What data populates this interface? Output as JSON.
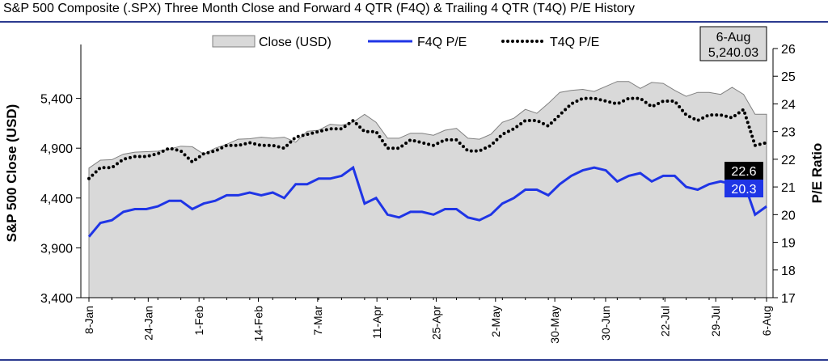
{
  "title": "S&P 500 Composite (.SPX) Three Month Close and Forward 4 QTR (F4Q) & Trailing 4 QTR (T4Q) P/E History",
  "colors": {
    "close_fill": "#d9d9d9",
    "close_stroke": "#808080",
    "f4q": "#1f35e6",
    "t4q": "#000000",
    "rule": "#2b3a8f"
  },
  "callout": {
    "date": "6-Aug",
    "value": "5,240.03"
  },
  "last_labels": {
    "t4q": "22.6",
    "f4q": "20.3"
  },
  "chart_data": {
    "type": "area",
    "xlabel": "",
    "ylabel": "S&P 500 Close (USD)",
    "y2label": "P/E Ratio",
    "ylim": [
      3400,
      5900
    ],
    "y2lim": [
      17,
      26
    ],
    "yticks": [
      "3,400",
      "3,900",
      "4,400",
      "4,900",
      "5,400"
    ],
    "yticks_values": [
      3400,
      3900,
      4400,
      4900,
      5400
    ],
    "y2ticks": [
      17,
      18,
      19,
      20,
      21,
      22,
      23,
      24,
      25,
      26
    ],
    "xticks": [
      "8-Jan",
      "24-Jan",
      "1-Feb",
      "14-Feb",
      "7-Mar",
      "11-Apr",
      "25-Apr",
      "2-May",
      "30-May",
      "30-Jun",
      "22-Jul",
      "29-Jul",
      "6-Aug"
    ],
    "xticks_index": [
      0,
      7,
      13,
      20,
      27,
      34,
      41,
      48,
      55,
      61,
      68,
      74,
      80
    ],
    "legend": [
      "Close (USD)",
      "F4Q P/E",
      "T4Q P/E"
    ],
    "legend_position": "top",
    "series": [
      {
        "name": "Close (USD)",
        "axis": "left",
        "values": [
          4700,
          4780,
          4785,
          4840,
          4860,
          4865,
          4870,
          4890,
          4920,
          4915,
          4840,
          4900,
          4940,
          4990,
          4995,
          5010,
          5000,
          5010,
          4960,
          5070,
          5080,
          5140,
          5130,
          5160,
          5240,
          5160,
          5000,
          5000,
          5050,
          5050,
          5030,
          5080,
          5100,
          5000,
          4990,
          5040,
          5160,
          5200,
          5290,
          5250,
          5350,
          5460,
          5480,
          5490,
          5470,
          5520,
          5570,
          5570,
          5500,
          5560,
          5550,
          5480,
          5420,
          5460,
          5460,
          5440,
          5510,
          5440,
          5240,
          5240
        ]
      },
      {
        "name": "F4Q P/E",
        "axis": "right",
        "values": [
          19.2,
          19.7,
          19.8,
          20.1,
          20.2,
          20.2,
          20.3,
          20.5,
          20.5,
          20.2,
          20.4,
          20.5,
          20.7,
          20.7,
          20.8,
          20.7,
          20.8,
          20.6,
          21.1,
          21.1,
          21.3,
          21.3,
          21.4,
          21.7,
          20.4,
          20.6,
          20.0,
          19.9,
          20.1,
          20.1,
          20.0,
          20.2,
          20.2,
          19.9,
          19.8,
          20.0,
          20.4,
          20.6,
          20.9,
          20.9,
          20.7,
          21.1,
          21.4,
          21.6,
          21.7,
          21.6,
          21.2,
          21.4,
          21.5,
          21.2,
          21.4,
          21.4,
          21.0,
          20.9,
          21.1,
          21.2,
          21.1,
          21.2,
          20.0,
          20.3
        ]
      },
      {
        "name": "T4Q P/E",
        "axis": "right",
        "values": [
          21.3,
          21.7,
          21.7,
          22.0,
          22.1,
          22.1,
          22.2,
          22.4,
          22.3,
          21.9,
          22.2,
          22.3,
          22.5,
          22.5,
          22.6,
          22.5,
          22.5,
          22.4,
          22.8,
          22.9,
          23.0,
          23.1,
          23.1,
          23.4,
          23.0,
          23.0,
          22.4,
          22.4,
          22.7,
          22.6,
          22.5,
          22.7,
          22.7,
          22.3,
          22.3,
          22.5,
          22.9,
          23.1,
          23.4,
          23.4,
          23.2,
          23.6,
          24.0,
          24.2,
          24.2,
          24.1,
          24.0,
          24.2,
          24.2,
          23.9,
          24.1,
          24.1,
          23.6,
          23.4,
          23.6,
          23.6,
          23.5,
          23.8,
          22.5,
          22.6
        ]
      }
    ]
  }
}
